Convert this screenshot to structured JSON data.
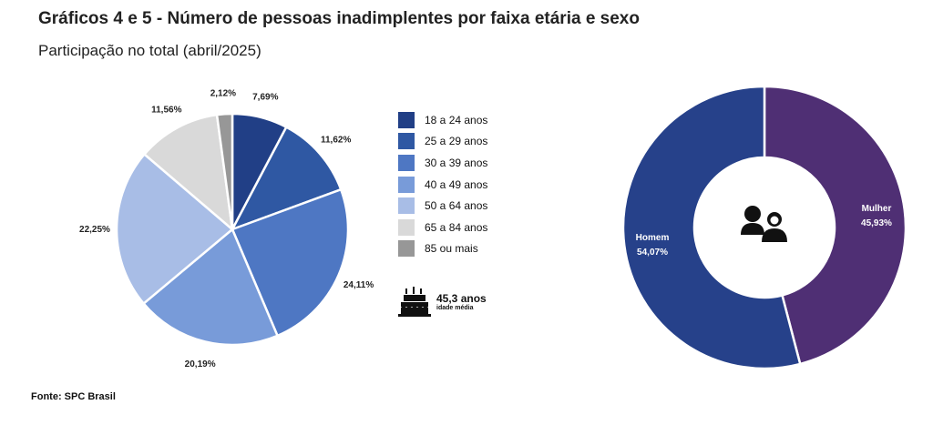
{
  "title": "Gráficos 4 e 5 - Número de pessoas inadimplentes por faixa etária e sexo",
  "subtitle": "Participação no total (abril/2025)",
  "source": "Fonte: SPC Brasil",
  "average": {
    "value": "45,3 anos",
    "caption": "idade média",
    "icon": "birthday-cake-icon"
  },
  "gender_icon": "people-couple-icon",
  "chart_data": [
    {
      "type": "pie",
      "categories": [
        "18 a 24 anos",
        "25 a 29 anos",
        "30 a 39 anos",
        "40 a 49 anos",
        "50 a 64 anos",
        "65 a 84 anos",
        "85 ou mais"
      ],
      "values": [
        7.69,
        11.62,
        24.11,
        20.19,
        22.25,
        11.56,
        2.12
      ],
      "labels": [
        "7,69%",
        "11,62%",
        "24,11%",
        "20,19%",
        "22,25%",
        "11,56%",
        "2,12%"
      ],
      "colors": [
        "#213f86",
        "#2f58a3",
        "#4e77c3",
        "#789bd9",
        "#a8bde6",
        "#d9d9d9",
        "#979797"
      ],
      "legend": "right"
    },
    {
      "type": "pie",
      "categories": [
        "Mulher",
        "Homem"
      ],
      "values": [
        45.93,
        54.07
      ],
      "labels": [
        "45,93%",
        "54,07%"
      ],
      "colors": [
        "#4f2f74",
        "#26418a"
      ],
      "legend": "none"
    }
  ]
}
